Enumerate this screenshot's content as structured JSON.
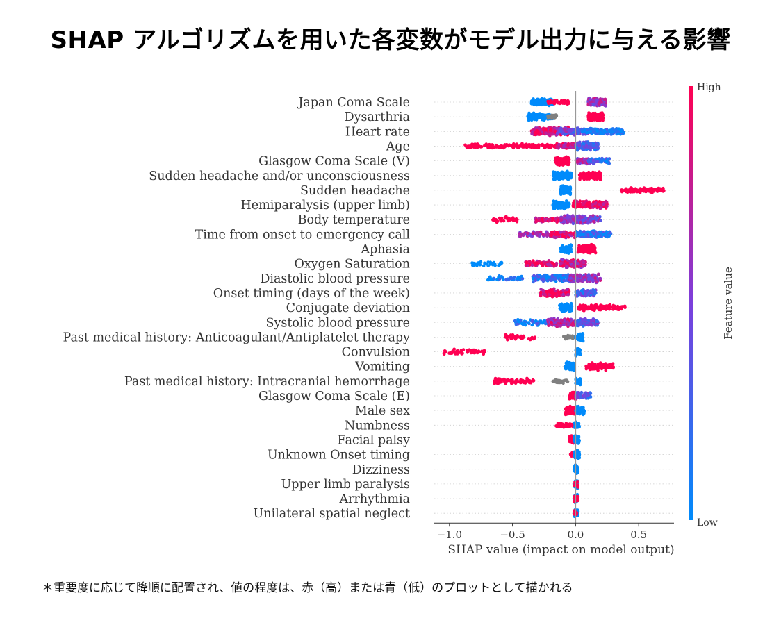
{
  "title": "SHAP アルゴリズムを用いた各変数がモデル出力に与える影響",
  "footnote": "＊重要度に応じて降順に配置され、値の程度は、赤（高）または青（低）のプロットとして描かれる",
  "chart_data": {
    "type": "beeswarm",
    "xlabel": "SHAP value (impact on model output)",
    "xlim": [
      -1.12,
      0.78
    ],
    "xticks": [
      -1.0,
      -0.5,
      0.0,
      0.5
    ],
    "xtick_labels": [
      "−1.0",
      "−0.5",
      "0.0",
      "0.5"
    ],
    "colorbar": {
      "label": "Feature value",
      "high": "High",
      "low": "Low",
      "high_color": "#ff0052",
      "low_color": "#008bfb"
    },
    "missing_color": "#808080",
    "features": [
      {
        "name": "Japan Coma Scale",
        "groups": [
          [
            -0.35,
            -0.18,
            0,
            130,
            0.9
          ],
          [
            -0.22,
            -0.05,
            1,
            50,
            0.5
          ],
          [
            0.1,
            0.24,
            0.62,
            140,
            1.0
          ]
        ]
      },
      {
        "name": "Dysarthria",
        "groups": [
          [
            -0.38,
            -0.18,
            0,
            140,
            0.9
          ],
          [
            -0.22,
            -0.15,
            -1,
            30,
            0.5
          ],
          [
            0.1,
            0.22,
            1,
            140,
            1.0
          ]
        ]
      },
      {
        "name": "Heart rate",
        "groups": [
          [
            -0.35,
            -0.05,
            0.85,
            220,
            1.0
          ],
          [
            -0.15,
            0.1,
            0.45,
            170,
            0.9
          ],
          [
            0.05,
            0.38,
            0.12,
            180,
            0.7
          ]
        ]
      },
      {
        "name": "Age",
        "groups": [
          [
            -0.88,
            -0.12,
            1,
            150,
            0.6
          ],
          [
            -0.15,
            0.0,
            0.8,
            60,
            0.6
          ],
          [
            0.0,
            0.18,
            0.3,
            160,
            1.0
          ]
        ]
      },
      {
        "name": "Glasgow Coma Scale (V)",
        "groups": [
          [
            -0.16,
            -0.05,
            1,
            130,
            1.0
          ],
          [
            0.0,
            0.14,
            0.6,
            90,
            0.7
          ],
          [
            0.1,
            0.27,
            0.25,
            80,
            0.7
          ]
        ]
      },
      {
        "name": "Sudden headache and/or unconsciousness",
        "groups": [
          [
            -0.18,
            -0.03,
            0,
            150,
            1.0
          ],
          [
            0.03,
            0.2,
            1,
            150,
            1.0
          ]
        ]
      },
      {
        "name": "Sudden headache",
        "groups": [
          [
            -0.12,
            -0.04,
            0,
            120,
            1.0
          ],
          [
            0.36,
            0.7,
            1,
            120,
            0.6
          ]
        ]
      },
      {
        "name": "Hemiparalysis (upper limb)",
        "groups": [
          [
            -0.18,
            -0.05,
            0,
            110,
            1.0
          ],
          [
            -0.02,
            0.25,
            0.95,
            140,
            0.9
          ]
        ]
      },
      {
        "name": "Body temperature",
        "groups": [
          [
            -0.66,
            -0.46,
            1,
            40,
            0.7
          ],
          [
            -0.32,
            -0.12,
            0.9,
            60,
            0.6
          ],
          [
            -0.12,
            0.2,
            0.55,
            200,
            1.0
          ]
        ]
      },
      {
        "name": "Time from onset to emergency call",
        "groups": [
          [
            -0.45,
            -0.2,
            0.6,
            60,
            0.7
          ],
          [
            -0.2,
            0.0,
            0.85,
            100,
            0.8
          ],
          [
            0.0,
            0.28,
            0.2,
            160,
            0.8
          ]
        ]
      },
      {
        "name": "Aphasia",
        "groups": [
          [
            -0.12,
            -0.03,
            0,
            90,
            1.0
          ],
          [
            0.02,
            0.16,
            1,
            100,
            1.0
          ]
        ]
      },
      {
        "name": "Oxygen Saturation",
        "groups": [
          [
            -0.82,
            -0.58,
            0,
            40,
            0.6
          ],
          [
            -0.4,
            -0.15,
            0.92,
            70,
            0.8
          ],
          [
            -0.12,
            0.08,
            0.8,
            160,
            1.0
          ]
        ]
      },
      {
        "name": "Diastolic blood pressure",
        "groups": [
          [
            -0.7,
            -0.42,
            0.05,
            40,
            0.6
          ],
          [
            -0.34,
            -0.05,
            0.15,
            120,
            0.9
          ],
          [
            -0.05,
            0.2,
            0.6,
            160,
            1.0
          ]
        ]
      },
      {
        "name": "Onset timing (days of the week)",
        "groups": [
          [
            -0.28,
            -0.05,
            0.9,
            150,
            1.0
          ],
          [
            0.0,
            0.16,
            0.3,
            100,
            0.9
          ]
        ]
      },
      {
        "name": "Conjugate deviation",
        "groups": [
          [
            -0.13,
            -0.03,
            0,
            100,
            1.0
          ],
          [
            0.02,
            0.4,
            1,
            120,
            0.7
          ]
        ]
      },
      {
        "name": "Systolic blood pressure",
        "groups": [
          [
            -0.48,
            -0.2,
            0.1,
            60,
            0.7
          ],
          [
            -0.22,
            0.0,
            0.75,
            150,
            1.0
          ],
          [
            0.0,
            0.18,
            0.4,
            120,
            0.9
          ]
        ]
      },
      {
        "name": "Past medical history: Anticoagulant/Antiplatelet therapy",
        "groups": [
          [
            -0.56,
            -0.32,
            1,
            50,
            0.7
          ],
          [
            -0.1,
            -0.01,
            -1,
            30,
            0.5
          ],
          [
            0.0,
            0.06,
            0,
            60,
            1.0
          ]
        ]
      },
      {
        "name": "Convulsion",
        "groups": [
          [
            -1.05,
            -0.72,
            1,
            60,
            0.6
          ],
          [
            0.0,
            0.04,
            0,
            40,
            1.0
          ]
        ]
      },
      {
        "name": "Vomiting",
        "groups": [
          [
            -0.08,
            -0.01,
            0,
            70,
            1.0
          ],
          [
            0.08,
            0.3,
            1,
            110,
            0.9
          ]
        ]
      },
      {
        "name": "Past medical history: Intracranial hemorrhage",
        "groups": [
          [
            -0.65,
            -0.33,
            1,
            80,
            0.7
          ],
          [
            -0.18,
            -0.06,
            -1,
            30,
            0.5
          ],
          [
            0.0,
            0.04,
            0,
            40,
            1.0
          ]
        ]
      },
      {
        "name": "Glasgow Coma Scale (E)",
        "groups": [
          [
            -0.05,
            0.0,
            1,
            50,
            1.0
          ],
          [
            0.0,
            0.12,
            0.35,
            60,
            0.8
          ]
        ]
      },
      {
        "name": "Male sex",
        "groups": [
          [
            -0.08,
            0.0,
            1,
            90,
            1.0
          ],
          [
            0.0,
            0.07,
            0,
            70,
            1.0
          ]
        ]
      },
      {
        "name": "Numbness",
        "groups": [
          [
            -0.16,
            -0.02,
            1,
            50,
            0.6
          ],
          [
            -0.01,
            0.03,
            0,
            60,
            1.0
          ]
        ]
      },
      {
        "name": "Facial palsy",
        "groups": [
          [
            -0.05,
            0.0,
            1,
            40,
            1.0
          ],
          [
            -0.01,
            0.03,
            0,
            60,
            1.0
          ]
        ]
      },
      {
        "name": "Unknown Onset timing",
        "groups": [
          [
            -0.04,
            0.0,
            1,
            20,
            0.6
          ],
          [
            -0.01,
            0.03,
            0,
            60,
            1.0
          ]
        ]
      },
      {
        "name": "Dizziness",
        "groups": [
          [
            -0.01,
            0.02,
            0,
            60,
            1.0
          ]
        ]
      },
      {
        "name": "Upper limb paralysis",
        "groups": [
          [
            -0.01,
            0.02,
            0,
            40,
            1.0
          ],
          [
            -0.01,
            0.02,
            1,
            15,
            0.8
          ]
        ]
      },
      {
        "name": "Arrhythmia",
        "groups": [
          [
            -0.01,
            0.02,
            0,
            40,
            1.0
          ],
          [
            -0.01,
            0.02,
            1,
            20,
            0.8
          ]
        ]
      },
      {
        "name": "Unilateral spatial neglect",
        "groups": [
          [
            -0.01,
            0.02,
            0,
            40,
            1.0
          ],
          [
            -0.01,
            0.02,
            1,
            10,
            0.8
          ]
        ]
      }
    ]
  }
}
